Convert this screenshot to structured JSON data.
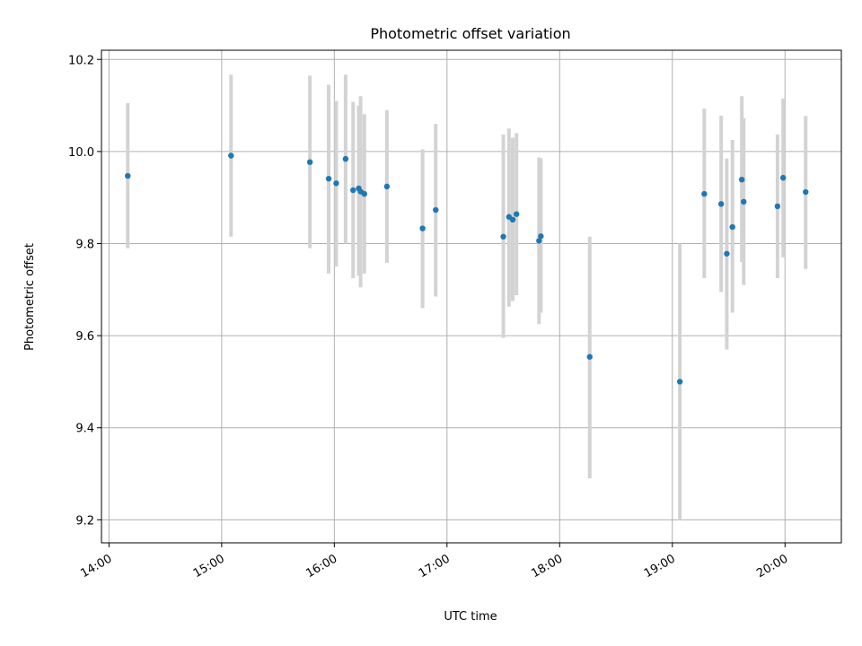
{
  "chart_data": {
    "type": "scatter",
    "title": "Photometric offset variation",
    "xlabel": "UTC time",
    "ylabel": "Photometric offset",
    "xlim": [
      "13:56",
      "20:30"
    ],
    "ylim": [
      9.15,
      10.22
    ],
    "x_ticks": [
      "14:00",
      "15:00",
      "16:00",
      "17:00",
      "18:00",
      "19:00",
      "20:00"
    ],
    "y_ticks": [
      9.2,
      9.4,
      9.6,
      9.8,
      10.0,
      10.2
    ],
    "y_tick_labels": [
      "9.2",
      "9.4",
      "9.6",
      "9.8",
      "10.0",
      "10.2"
    ],
    "grid": true,
    "marker_color": "#1f77b4",
    "errorbar_color": "#d3d3d3",
    "points": [
      {
        "x": "14:10",
        "y": 9.947,
        "ylow": 9.79,
        "yhigh": 10.105
      },
      {
        "x": "15:05",
        "y": 9.991,
        "ylow": 9.815,
        "yhigh": 10.167
      },
      {
        "x": "15:47",
        "y": 9.977,
        "ylow": 9.79,
        "yhigh": 10.165
      },
      {
        "x": "15:57",
        "y": 9.941,
        "ylow": 9.735,
        "yhigh": 10.145
      },
      {
        "x": "16:01",
        "y": 9.931,
        "ylow": 9.75,
        "yhigh": 10.11
      },
      {
        "x": "16:06",
        "y": 9.984,
        "ylow": 9.8,
        "yhigh": 10.167
      },
      {
        "x": "16:10",
        "y": 9.916,
        "ylow": 9.725,
        "yhigh": 10.108
      },
      {
        "x": "16:13",
        "y": 9.92,
        "ylow": 9.73,
        "yhigh": 10.1
      },
      {
        "x": "16:14",
        "y": 9.913,
        "ylow": 9.705,
        "yhigh": 10.12
      },
      {
        "x": "16:16",
        "y": 9.908,
        "ylow": 9.735,
        "yhigh": 10.081
      },
      {
        "x": "16:28",
        "y": 9.924,
        "ylow": 9.758,
        "yhigh": 10.09
      },
      {
        "x": "16:47",
        "y": 9.833,
        "ylow": 9.66,
        "yhigh": 10.005
      },
      {
        "x": "16:54",
        "y": 9.873,
        "ylow": 9.685,
        "yhigh": 10.06
      },
      {
        "x": "17:30",
        "y": 9.815,
        "ylow": 9.595,
        "yhigh": 10.037
      },
      {
        "x": "17:33",
        "y": 9.858,
        "ylow": 9.663,
        "yhigh": 10.05
      },
      {
        "x": "17:35",
        "y": 9.852,
        "ylow": 9.675,
        "yhigh": 10.03
      },
      {
        "x": "17:37",
        "y": 9.864,
        "ylow": 9.688,
        "yhigh": 10.04
      },
      {
        "x": "17:49",
        "y": 9.806,
        "ylow": 9.625,
        "yhigh": 9.987
      },
      {
        "x": "17:50",
        "y": 9.816,
        "ylow": 9.65,
        "yhigh": 9.985
      },
      {
        "x": "18:16",
        "y": 9.554,
        "ylow": 9.29,
        "yhigh": 9.815
      },
      {
        "x": "19:04",
        "y": 9.5,
        "ylow": 9.2,
        "yhigh": 9.8
      },
      {
        "x": "19:17",
        "y": 9.908,
        "ylow": 9.725,
        "yhigh": 10.093
      },
      {
        "x": "19:26",
        "y": 9.886,
        "ylow": 9.695,
        "yhigh": 10.078
      },
      {
        "x": "19:29",
        "y": 9.778,
        "ylow": 9.57,
        "yhigh": 9.985
      },
      {
        "x": "19:32",
        "y": 9.836,
        "ylow": 9.65,
        "yhigh": 10.025
      },
      {
        "x": "19:37",
        "y": 9.939,
        "ylow": 9.76,
        "yhigh": 10.12
      },
      {
        "x": "19:38",
        "y": 9.891,
        "ylow": 9.71,
        "yhigh": 10.072
      },
      {
        "x": "19:56",
        "y": 9.881,
        "ylow": 9.725,
        "yhigh": 10.037
      },
      {
        "x": "19:59",
        "y": 9.943,
        "ylow": 9.77,
        "yhigh": 10.115
      },
      {
        "x": "20:11",
        "y": 9.912,
        "ylow": 9.745,
        "yhigh": 10.077
      }
    ]
  }
}
